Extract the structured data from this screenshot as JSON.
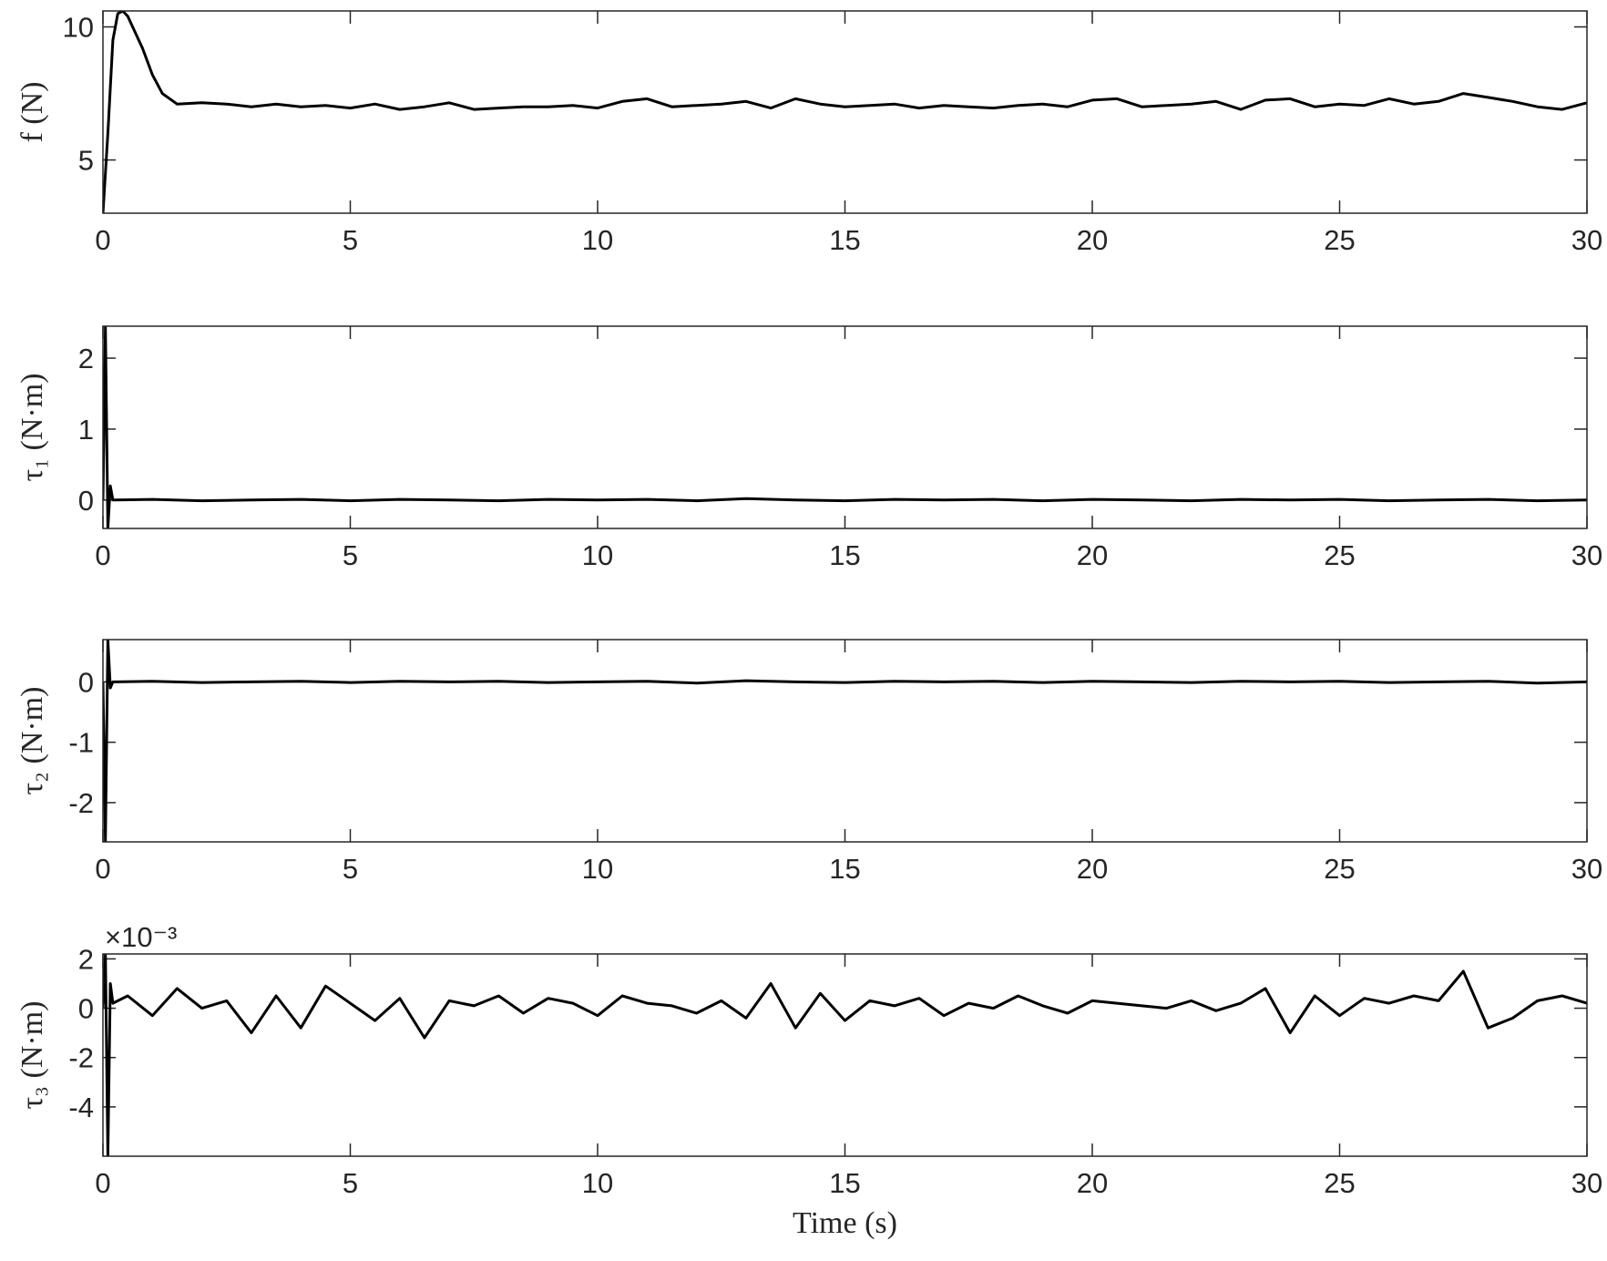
{
  "chart_data": [
    {
      "type": "line",
      "y_label": "f (N)",
      "x": [
        0,
        0.1,
        0.2,
        0.3,
        0.4,
        0.5,
        0.6,
        0.8,
        1,
        1.2,
        1.5,
        2,
        2.5,
        3,
        3.5,
        4,
        4.5,
        5,
        5.5,
        6,
        6.5,
        7,
        7.5,
        8,
        8.5,
        9,
        9.5,
        10,
        10.5,
        11,
        11.5,
        12,
        12.5,
        13,
        13.5,
        14,
        14.5,
        15,
        15.5,
        16,
        16.5,
        17,
        17.5,
        18,
        18.5,
        19,
        19.5,
        20,
        20.5,
        21,
        21.5,
        22,
        22.5,
        23,
        23.5,
        24,
        24.5,
        25,
        25.5,
        26,
        26.5,
        27,
        27.5,
        28,
        28.5,
        29,
        29.5,
        30
      ],
      "series": [
        {
          "color": "#000000",
          "values": [
            3,
            6,
            9.5,
            10.5,
            10.6,
            10.4,
            10,
            9.2,
            8.2,
            7.5,
            7.1,
            7.15,
            7.1,
            7.0,
            7.1,
            7.0,
            7.05,
            6.95,
            7.1,
            6.9,
            7.0,
            7.15,
            6.9,
            6.95,
            7.0,
            7.0,
            7.05,
            6.95,
            7.2,
            7.3,
            7.0,
            7.05,
            7.1,
            7.2,
            6.95,
            7.3,
            7.1,
            7.0,
            7.05,
            7.1,
            6.95,
            7.05,
            7.0,
            6.95,
            7.05,
            7.1,
            7.0,
            7.25,
            7.3,
            7.0,
            7.05,
            7.1,
            7.2,
            6.9,
            7.25,
            7.3,
            7.0,
            7.1,
            7.05,
            7.3,
            7.1,
            7.2,
            7.5,
            7.35,
            7.2,
            7.0,
            6.9,
            7.15
          ]
        }
      ],
      "xlim": [
        0,
        30
      ],
      "xticks": [
        0,
        5,
        10,
        15,
        20,
        25,
        30
      ],
      "ylim": [
        3,
        10.6
      ],
      "yticks": [
        5,
        10
      ]
    },
    {
      "type": "line",
      "y_label": "τ₁ (N·m)",
      "x": [
        0,
        0.05,
        0.1,
        0.15,
        0.2,
        1,
        2,
        3,
        4,
        5,
        6,
        7,
        8,
        9,
        10,
        11,
        12,
        13,
        14,
        15,
        16,
        17,
        18,
        19,
        20,
        21,
        22,
        23,
        24,
        25,
        26,
        27,
        28,
        29,
        30
      ],
      "series": [
        {
          "color": "#000000",
          "values": [
            0,
            2.45,
            -0.4,
            0.2,
            0,
            0.01,
            -0.01,
            0,
            0.01,
            -0.01,
            0.01,
            0,
            -0.01,
            0.01,
            0,
            0.01,
            -0.01,
            0.02,
            0,
            -0.01,
            0.01,
            0,
            0.01,
            -0.01,
            0.01,
            0,
            -0.01,
            0.01,
            0,
            0.01,
            -0.01,
            0,
            0.01,
            -0.01,
            0
          ]
        }
      ],
      "xlim": [
        0,
        30
      ],
      "xticks": [
        0,
        5,
        10,
        15,
        20,
        25,
        30
      ],
      "ylim": [
        -0.4,
        2.45
      ],
      "yticks": [
        0,
        1,
        2
      ]
    },
    {
      "type": "line",
      "y_label": "τ₂ (N·m)",
      "x": [
        0,
        0.05,
        0.1,
        0.15,
        0.2,
        1,
        2,
        3,
        4,
        5,
        6,
        7,
        8,
        9,
        10,
        11,
        12,
        13,
        14,
        15,
        16,
        17,
        18,
        19,
        20,
        21,
        22,
        23,
        24,
        25,
        26,
        27,
        28,
        29,
        30
      ],
      "series": [
        {
          "color": "#000000",
          "values": [
            0,
            -2.65,
            0.7,
            -0.1,
            0,
            0.01,
            -0.01,
            0,
            0.01,
            -0.01,
            0.01,
            0,
            0.01,
            -0.01,
            0,
            0.01,
            -0.02,
            0.02,
            0,
            -0.01,
            0.01,
            0,
            0.01,
            -0.01,
            0.01,
            0,
            -0.01,
            0.01,
            0,
            0.01,
            -0.01,
            0,
            0.01,
            -0.02,
            0
          ]
        }
      ],
      "xlim": [
        0,
        30
      ],
      "xticks": [
        0,
        5,
        10,
        15,
        20,
        25,
        30
      ],
      "ylim": [
        -2.65,
        0.7
      ],
      "yticks": [
        -2,
        -1,
        0
      ]
    },
    {
      "type": "line",
      "y_label": "τ₃ (N·m)",
      "exponent_label": "×10⁻³",
      "x_label": "Time (s)",
      "x": [
        0,
        0.05,
        0.1,
        0.15,
        0.2,
        0.5,
        1,
        1.5,
        2,
        2.5,
        3,
        3.5,
        4,
        4.5,
        5,
        5.5,
        6,
        6.5,
        7,
        7.5,
        8,
        8.5,
        9,
        9.5,
        10,
        10.5,
        11,
        11.5,
        12,
        12.5,
        13,
        13.5,
        14,
        14.5,
        15,
        15.5,
        16,
        16.5,
        17,
        17.5,
        18,
        18.5,
        19,
        19.5,
        20,
        20.5,
        21,
        21.5,
        22,
        22.5,
        23,
        23.5,
        24,
        24.5,
        25,
        25.5,
        26,
        26.5,
        27,
        27.5,
        28,
        28.5,
        29,
        29.5,
        30
      ],
      "series": [
        {
          "color": "#000000",
          "values": [
            0,
            2.2,
            -6,
            1,
            0.2,
            0.5,
            -0.3,
            0.8,
            0,
            0.3,
            -1,
            0.5,
            -0.8,
            0.9,
            0.2,
            -0.5,
            0.4,
            -1.2,
            0.3,
            0.1,
            0.5,
            -0.2,
            0.4,
            0.2,
            -0.3,
            0.5,
            0.2,
            0.1,
            -0.2,
            0.3,
            -0.4,
            1,
            -0.8,
            0.6,
            -0.5,
            0.3,
            0.1,
            0.4,
            -0.3,
            0.2,
            0,
            0.5,
            0.1,
            -0.2,
            0.3,
            0.2,
            0.1,
            0,
            0.3,
            -0.1,
            0.2,
            0.8,
            -1,
            0.5,
            -0.3,
            0.4,
            0.2,
            0.5,
            0.3,
            1.5,
            -0.8,
            -0.4,
            0.3,
            0.5,
            0.2
          ]
        }
      ],
      "xlim": [
        0,
        30
      ],
      "xticks": [
        0,
        5,
        10,
        15,
        20,
        25,
        30
      ],
      "ylim": [
        -6,
        2.2
      ],
      "yticks": [
        -4,
        -2,
        0,
        2
      ]
    }
  ]
}
